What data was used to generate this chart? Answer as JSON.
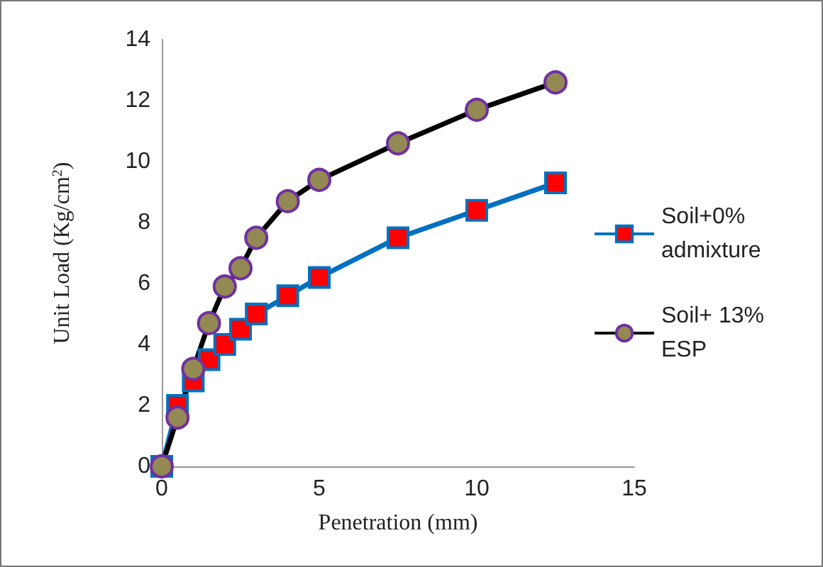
{
  "chart_data": {
    "type": "line",
    "xlabel": "Penetration (mm)",
    "ylabel": "Unit Load (Kg/cm$^{2}$)",
    "xlim": [
      0,
      15
    ],
    "xticks": [
      0,
      5,
      10,
      15
    ],
    "ylim": [
      0,
      14
    ],
    "yticks": [
      0,
      2,
      4,
      6,
      8,
      10,
      12,
      14
    ],
    "grid": false,
    "legend": "right",
    "series": [
      {
        "name": "Soil+0% admixture",
        "color": "#0070c0",
        "marker": "square",
        "x": [
          0,
          0.5,
          1,
          1.5,
          2,
          2.5,
          3,
          4,
          5,
          7.5,
          10,
          12.5
        ],
        "values": [
          0,
          2.0,
          2.8,
          3.5,
          4.0,
          4.5,
          5.0,
          5.6,
          6.2,
          7.5,
          8.4,
          9.3
        ]
      },
      {
        "name": "Soil+ 13% ESP",
        "color": "#000000",
        "marker": "circle",
        "x": [
          0,
          0.5,
          1,
          1.5,
          2,
          2.5,
          3,
          4,
          5,
          7.5,
          10,
          12.5
        ],
        "values": [
          0,
          1.6,
          3.2,
          4.7,
          5.9,
          6.5,
          7.5,
          8.7,
          9.4,
          10.6,
          11.7,
          12.6
        ]
      }
    ]
  }
}
